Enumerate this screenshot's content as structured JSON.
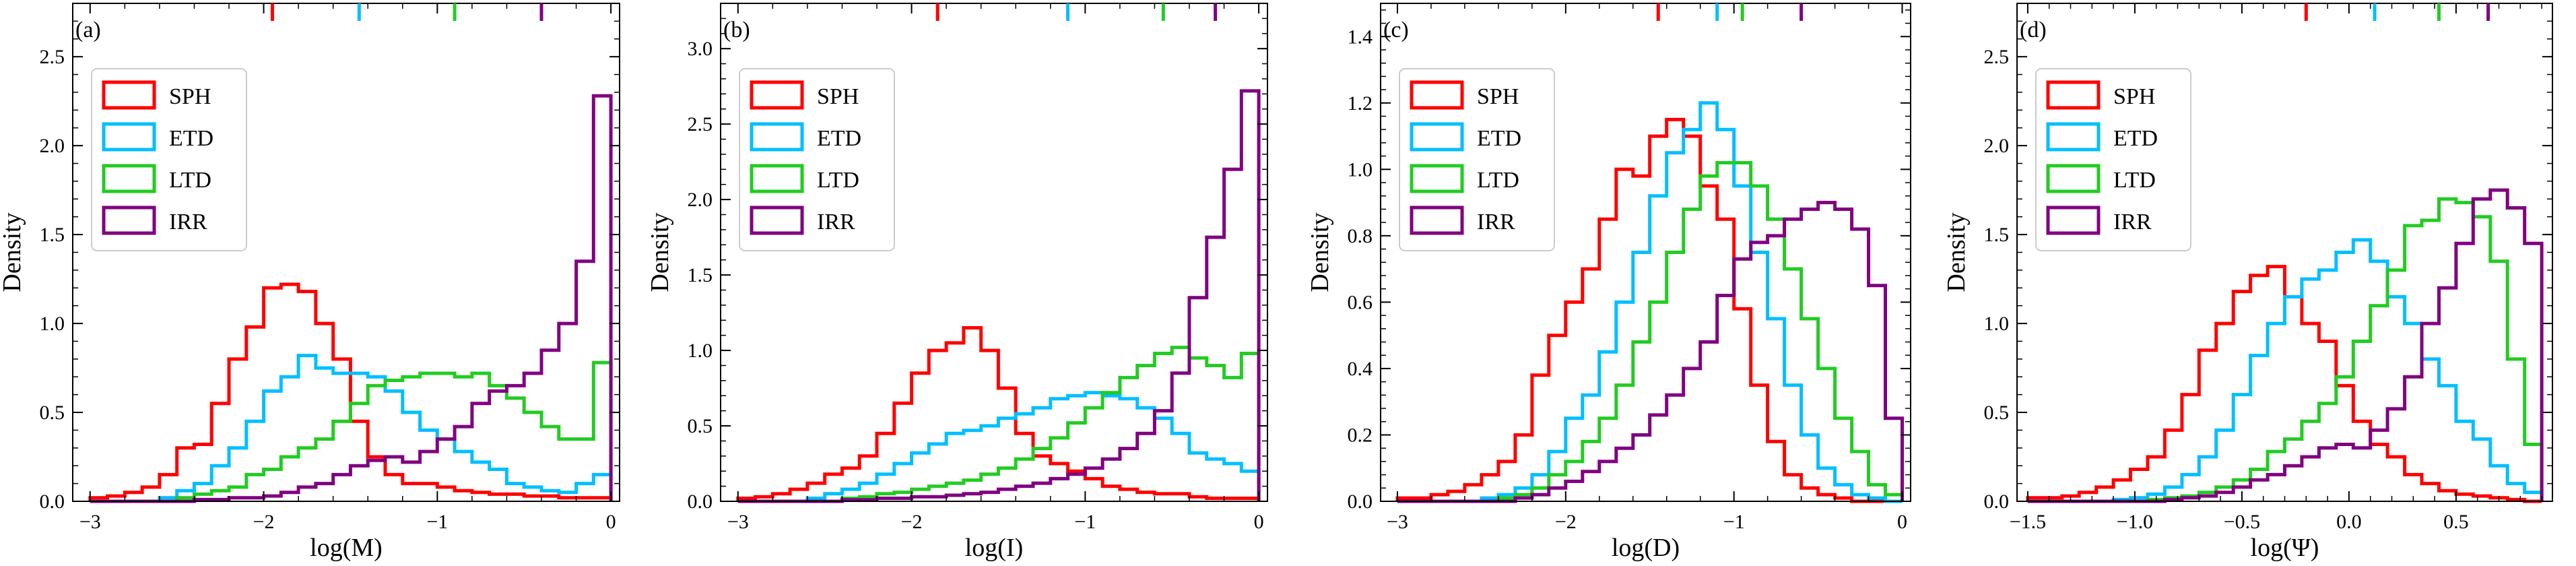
{
  "figure": {
    "colors": {
      "SPH": "#ff0000",
      "ETD": "#00bfff",
      "LTD": "#22cc22",
      "IRR": "#800080"
    }
  },
  "chart_data": [
    {
      "type": "histogram",
      "panel_label": "(a)",
      "xlabel": "log(M)",
      "ylabel": "Density",
      "xlim": [
        -3.1,
        0.05
      ],
      "ylim": [
        0,
        2.8
      ],
      "xticks": [
        -3,
        -2,
        -1,
        0
      ],
      "xtick_labels": [
        "−3",
        "−2",
        "−1",
        "0"
      ],
      "yticks": [
        0,
        0.5,
        1,
        1.5,
        2,
        2.5
      ],
      "ytick_labels": [
        "0.0",
        "0.5",
        "1.0",
        "1.5",
        "2.0",
        "2.5"
      ],
      "legend": [
        "SPH",
        "ETD",
        "LTD",
        "IRR"
      ],
      "legend_position": "upper-left",
      "bin_edges_range": [
        -3.0,
        0.0
      ],
      "bins": 30,
      "series": [
        {
          "name": "SPH",
          "values": [
            0.02,
            0.03,
            0.05,
            0.08,
            0.15,
            0.3,
            0.32,
            0.55,
            0.8,
            0.98,
            1.2,
            1.22,
            1.18,
            1.0,
            0.8,
            0.45,
            0.25,
            0.15,
            0.1,
            0.1,
            0.08,
            0.06,
            0.05,
            0.04,
            0.04,
            0.03,
            0.03,
            0.02,
            0.02,
            0.02
          ]
        },
        {
          "name": "ETD",
          "values": [
            0,
            0,
            0,
            0,
            0.02,
            0.06,
            0.1,
            0.2,
            0.3,
            0.45,
            0.62,
            0.7,
            0.82,
            0.75,
            0.72,
            0.72,
            0.7,
            0.62,
            0.5,
            0.4,
            0.35,
            0.28,
            0.22,
            0.18,
            0.1,
            0.08,
            0.06,
            0.05,
            0.1,
            0.15
          ]
        },
        {
          "name": "LTD",
          "values": [
            0,
            0,
            0,
            0,
            0,
            0.02,
            0.04,
            0.06,
            0.08,
            0.15,
            0.18,
            0.25,
            0.3,
            0.35,
            0.45,
            0.55,
            0.65,
            0.68,
            0.7,
            0.72,
            0.72,
            0.7,
            0.72,
            0.65,
            0.58,
            0.5,
            0.42,
            0.35,
            0.35,
            0.78
          ]
        },
        {
          "name": "IRR",
          "values": [
            0,
            0,
            0,
            0,
            0,
            0,
            0.01,
            0.01,
            0.02,
            0.02,
            0.03,
            0.05,
            0.08,
            0.1,
            0.15,
            0.2,
            0.23,
            0.25,
            0.22,
            0.28,
            0.35,
            0.42,
            0.55,
            0.62,
            0.65,
            0.72,
            0.85,
            1.0,
            1.35,
            2.28
          ]
        }
      ],
      "markers": [
        -1.95,
        -1.45,
        -0.9,
        -0.4
      ]
    },
    {
      "type": "histogram",
      "panel_label": "(b)",
      "xlabel": "log(I)",
      "ylabel": "Density",
      "xlim": [
        -3.1,
        0.05
      ],
      "ylim": [
        0,
        3.3
      ],
      "xticks": [
        -3,
        -2,
        -1,
        0
      ],
      "xtick_labels": [
        "−3",
        "−2",
        "−1",
        "0"
      ],
      "yticks": [
        0,
        0.5,
        1,
        1.5,
        2,
        2.5,
        3
      ],
      "ytick_labels": [
        "0.0",
        "0.5",
        "1.0",
        "1.5",
        "2.0",
        "2.5",
        "3.0"
      ],
      "legend": [
        "SPH",
        "ETD",
        "LTD",
        "IRR"
      ],
      "legend_position": "upper-left",
      "bin_edges_range": [
        -3.0,
        0.0
      ],
      "bins": 30,
      "series": [
        {
          "name": "SPH",
          "values": [
            0.02,
            0.03,
            0.05,
            0.08,
            0.12,
            0.18,
            0.22,
            0.3,
            0.45,
            0.65,
            0.85,
            1.0,
            1.05,
            1.15,
            1.0,
            0.75,
            0.45,
            0.3,
            0.25,
            0.2,
            0.15,
            0.1,
            0.08,
            0.06,
            0.05,
            0.05,
            0.03,
            0.02,
            0.02,
            0.02
          ]
        },
        {
          "name": "ETD",
          "values": [
            0,
            0,
            0,
            0,
            0.02,
            0.05,
            0.08,
            0.12,
            0.18,
            0.25,
            0.32,
            0.38,
            0.45,
            0.47,
            0.5,
            0.55,
            0.58,
            0.62,
            0.68,
            0.7,
            0.72,
            0.7,
            0.68,
            0.62,
            0.55,
            0.45,
            0.32,
            0.28,
            0.25,
            0.2
          ]
        },
        {
          "name": "LTD",
          "values": [
            0,
            0,
            0,
            0,
            0,
            0,
            0.02,
            0.03,
            0.05,
            0.06,
            0.08,
            0.1,
            0.12,
            0.14,
            0.18,
            0.22,
            0.28,
            0.35,
            0.42,
            0.52,
            0.62,
            0.72,
            0.82,
            0.9,
            0.98,
            1.02,
            0.95,
            0.9,
            0.82,
            0.98
          ]
        },
        {
          "name": "IRR",
          "values": [
            0,
            0,
            0,
            0,
            0,
            0,
            0.01,
            0.01,
            0.02,
            0.02,
            0.03,
            0.03,
            0.04,
            0.05,
            0.06,
            0.08,
            0.1,
            0.12,
            0.15,
            0.18,
            0.22,
            0.28,
            0.35,
            0.45,
            0.6,
            0.85,
            1.35,
            1.75,
            2.2,
            2.72
          ]
        }
      ],
      "markers": [
        -1.85,
        -1.1,
        -0.55,
        -0.25
      ]
    },
    {
      "type": "histogram",
      "panel_label": "(c)",
      "xlabel": "log(D)",
      "ylabel": "Density",
      "xlim": [
        -3.1,
        0.05
      ],
      "ylim": [
        0,
        1.5
      ],
      "xticks": [
        -3,
        -2,
        -1,
        0
      ],
      "xtick_labels": [
        "−3",
        "−2",
        "−1",
        "0"
      ],
      "yticks": [
        0,
        0.2,
        0.4,
        0.6,
        0.8,
        1.0,
        1.2,
        1.4
      ],
      "ytick_labels": [
        "0.0",
        "0.2",
        "0.4",
        "0.6",
        "0.8",
        "1.0",
        "1.2",
        "1.4"
      ],
      "legend": [
        "SPH",
        "ETD",
        "LTD",
        "IRR"
      ],
      "legend_position": "upper-left",
      "bin_edges_range": [
        -3.0,
        0.0
      ],
      "bins": 30,
      "series": [
        {
          "name": "SPH",
          "values": [
            0.01,
            0.01,
            0.02,
            0.03,
            0.05,
            0.08,
            0.12,
            0.2,
            0.38,
            0.5,
            0.6,
            0.7,
            0.85,
            1.0,
            0.98,
            1.1,
            1.15,
            1.1,
            0.95,
            0.85,
            0.58,
            0.35,
            0.18,
            0.08,
            0.04,
            0.02,
            0.01,
            0,
            0,
            0
          ]
        },
        {
          "name": "ETD",
          "values": [
            0,
            0,
            0,
            0,
            0,
            0.01,
            0.02,
            0.04,
            0.08,
            0.15,
            0.25,
            0.32,
            0.45,
            0.6,
            0.75,
            0.92,
            1.05,
            1.12,
            1.2,
            1.12,
            0.95,
            0.75,
            0.55,
            0.35,
            0.2,
            0.1,
            0.05,
            0.02,
            0.01,
            0
          ]
        },
        {
          "name": "LTD",
          "values": [
            0,
            0,
            0,
            0,
            0,
            0,
            0.01,
            0.02,
            0.04,
            0.08,
            0.12,
            0.18,
            0.25,
            0.35,
            0.48,
            0.6,
            0.75,
            0.88,
            0.98,
            1.02,
            1.02,
            0.95,
            0.85,
            0.7,
            0.55,
            0.4,
            0.25,
            0.15,
            0.05,
            0.02
          ]
        },
        {
          "name": "IRR",
          "values": [
            0,
            0,
            0,
            0,
            0,
            0,
            0,
            0.01,
            0.02,
            0.04,
            0.06,
            0.09,
            0.12,
            0.16,
            0.2,
            0.26,
            0.32,
            0.4,
            0.48,
            0.62,
            0.73,
            0.78,
            0.8,
            0.85,
            0.88,
            0.9,
            0.88,
            0.82,
            0.65,
            0.25
          ]
        }
      ],
      "markers": [
        -1.45,
        -1.1,
        -0.95,
        -0.6
      ]
    },
    {
      "type": "histogram",
      "panel_label": "(d)",
      "xlabel": "log(Ψ)",
      "ylabel": "Density",
      "xlim": [
        -1.55,
        0.95
      ],
      "ylim": [
        0,
        2.8
      ],
      "xticks": [
        -1.5,
        -1.0,
        -0.5,
        0.0,
        0.5
      ],
      "xtick_labels": [
        "−1.5",
        "−1.0",
        "−0.5",
        "0.0",
        "0.5"
      ],
      "yticks": [
        0,
        0.5,
        1,
        1.5,
        2,
        2.5
      ],
      "ytick_labels": [
        "0.0",
        "0.5",
        "1.0",
        "1.5",
        "2.0",
        "2.5"
      ],
      "legend": [
        "SPH",
        "ETD",
        "LTD",
        "IRR"
      ],
      "legend_position": "upper-left",
      "bin_edges_range": [
        -1.5,
        0.9
      ],
      "bins": 30,
      "series": [
        {
          "name": "SPH",
          "values": [
            0.02,
            0.02,
            0.03,
            0.05,
            0.08,
            0.12,
            0.18,
            0.25,
            0.4,
            0.6,
            0.85,
            1.0,
            1.18,
            1.27,
            1.32,
            1.15,
            1.0,
            0.9,
            0.65,
            0.45,
            0.32,
            0.25,
            0.15,
            0.1,
            0.06,
            0.04,
            0.03,
            0.02,
            0.01,
            0
          ]
        },
        {
          "name": "ETD",
          "values": [
            0,
            0,
            0,
            0,
            0,
            0.01,
            0.02,
            0.04,
            0.08,
            0.15,
            0.25,
            0.4,
            0.6,
            0.82,
            1.0,
            1.15,
            1.25,
            1.3,
            1.4,
            1.47,
            1.35,
            1.15,
            1.0,
            0.8,
            0.65,
            0.45,
            0.35,
            0.2,
            0.1,
            0.05
          ]
        },
        {
          "name": "LTD",
          "values": [
            0,
            0,
            0,
            0,
            0,
            0,
            0,
            0.01,
            0.02,
            0.03,
            0.05,
            0.08,
            0.12,
            0.18,
            0.28,
            0.35,
            0.45,
            0.55,
            0.7,
            0.9,
            1.1,
            1.3,
            1.55,
            1.58,
            1.7,
            1.68,
            1.6,
            1.35,
            0.8,
            0.32
          ]
        },
        {
          "name": "IRR",
          "values": [
            0,
            0,
            0,
            0,
            0,
            0,
            0,
            0,
            0.01,
            0.02,
            0.03,
            0.05,
            0.08,
            0.12,
            0.15,
            0.2,
            0.25,
            0.3,
            0.32,
            0.3,
            0.4,
            0.52,
            0.7,
            1.0,
            1.2,
            1.45,
            1.7,
            1.75,
            1.65,
            1.45
          ]
        }
      ],
      "markers": [
        -0.2,
        0.12,
        0.42,
        0.65
      ]
    }
  ]
}
